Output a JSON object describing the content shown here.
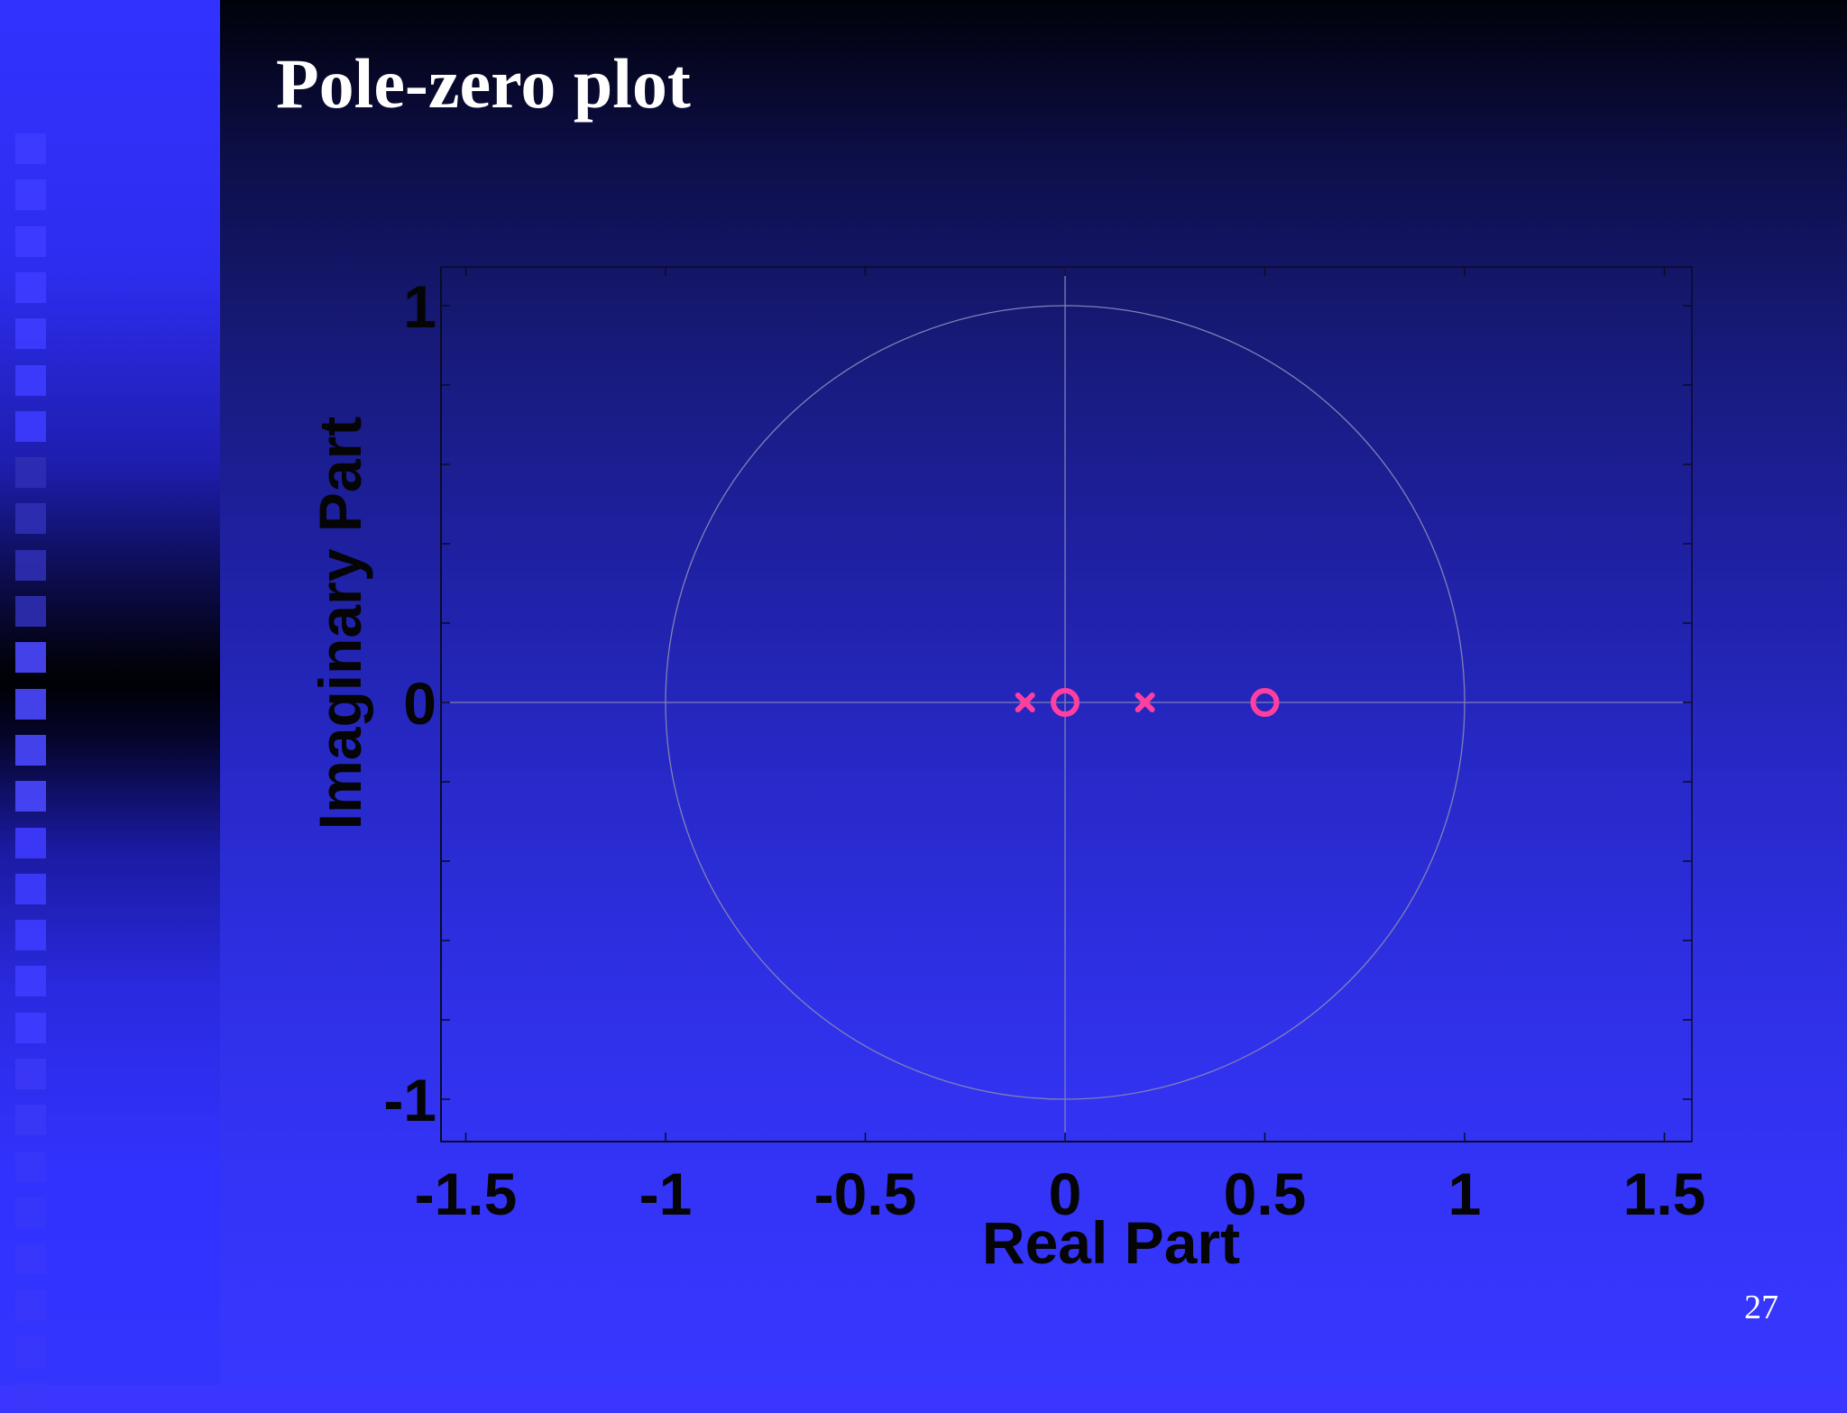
{
  "slide": {
    "title": "Pole-zero plot",
    "page_number": "27"
  },
  "colors": {
    "marker": "#ff3fa0",
    "axis": "#0a0a28",
    "guide": "#8080b8"
  },
  "chart_data": {
    "type": "scatter",
    "title": "",
    "xlabel": "Real Part",
    "ylabel": "Imaginary Part",
    "xlim": [
      -1.6,
      1.55
    ],
    "ylim": [
      -1.1,
      1.1
    ],
    "x_ticks": [
      -1.5,
      -1,
      -0.5,
      0,
      0.5,
      1,
      1.5
    ],
    "x_tick_labels": [
      "-1.5",
      "-1",
      "-0.5",
      "0",
      "0.5",
      "1",
      "1.5"
    ],
    "y_ticks": [
      -1,
      0,
      1
    ],
    "y_tick_labels": [
      "-1",
      "0",
      "1"
    ],
    "unit_circle": true,
    "grid": false,
    "series": [
      {
        "marker": "x",
        "points": [
          [
            -0.1,
            0
          ],
          [
            0.2,
            0
          ]
        ]
      },
      {
        "marker": "o",
        "points": [
          [
            0,
            0
          ],
          [
            0.5,
            0
          ]
        ]
      }
    ]
  }
}
